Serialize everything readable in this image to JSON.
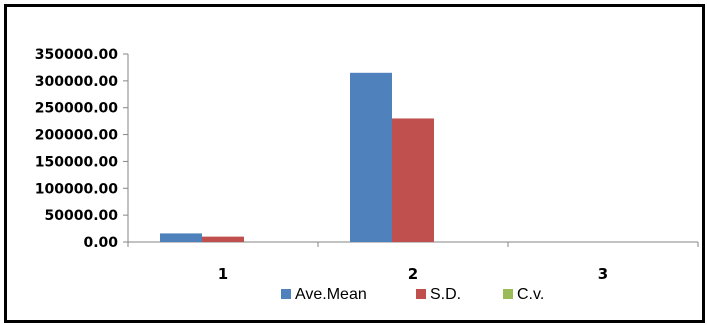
{
  "chart_data": {
    "type": "bar",
    "categories": [
      "1",
      "2",
      "3"
    ],
    "series": [
      {
        "name": "Ave.Mean",
        "color": "#4f81bd",
        "values": [
          16000,
          315000,
          0
        ]
      },
      {
        "name": "S.D.",
        "color": "#c0504d",
        "values": [
          10000,
          230000,
          0
        ]
      },
      {
        "name": "C.v.",
        "color": "#9bbb59",
        "values": [
          0.6,
          0.7,
          0
        ]
      }
    ],
    "yticks": [
      "0.00",
      "50000.00",
      "100000.00",
      "150000.00",
      "200000.00",
      "250000.00",
      "300000.00",
      "350000.00"
    ],
    "ylim": [
      0,
      350000
    ],
    "legend_position": "bottom",
    "grid": false
  }
}
